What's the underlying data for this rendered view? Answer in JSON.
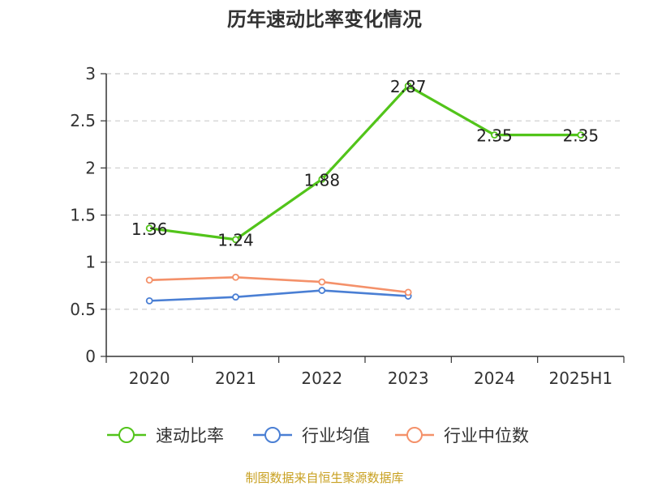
{
  "chart_data": {
    "type": "line",
    "title": "历年速动比率变化情况",
    "categories": [
      "2020",
      "2021",
      "2022",
      "2023",
      "2024",
      "2025H1"
    ],
    "yticks": [
      "0",
      "0.5",
      "1",
      "1.5",
      "2",
      "2.5",
      "3"
    ],
    "ylim": [
      0,
      3
    ],
    "grid": true,
    "legend_position": "bottom",
    "series": [
      {
        "name": "速动比率",
        "color": "#52c41a",
        "values": [
          1.36,
          1.24,
          1.88,
          2.87,
          2.35,
          2.35
        ],
        "labels": [
          "1.36",
          "1.24",
          "1.88",
          "2.87",
          "2.35",
          "2.35"
        ]
      },
      {
        "name": "行业均值",
        "color": "#4a7fd4",
        "values": [
          0.59,
          0.63,
          0.7,
          0.64,
          null,
          null
        ]
      },
      {
        "name": "行业中位数",
        "color": "#f4916a",
        "values": [
          0.81,
          0.84,
          0.79,
          0.68,
          null,
          null
        ]
      }
    ]
  },
  "source": {
    "text": "制图数据来自恒生聚源数据库",
    "color": "#c8a020"
  }
}
